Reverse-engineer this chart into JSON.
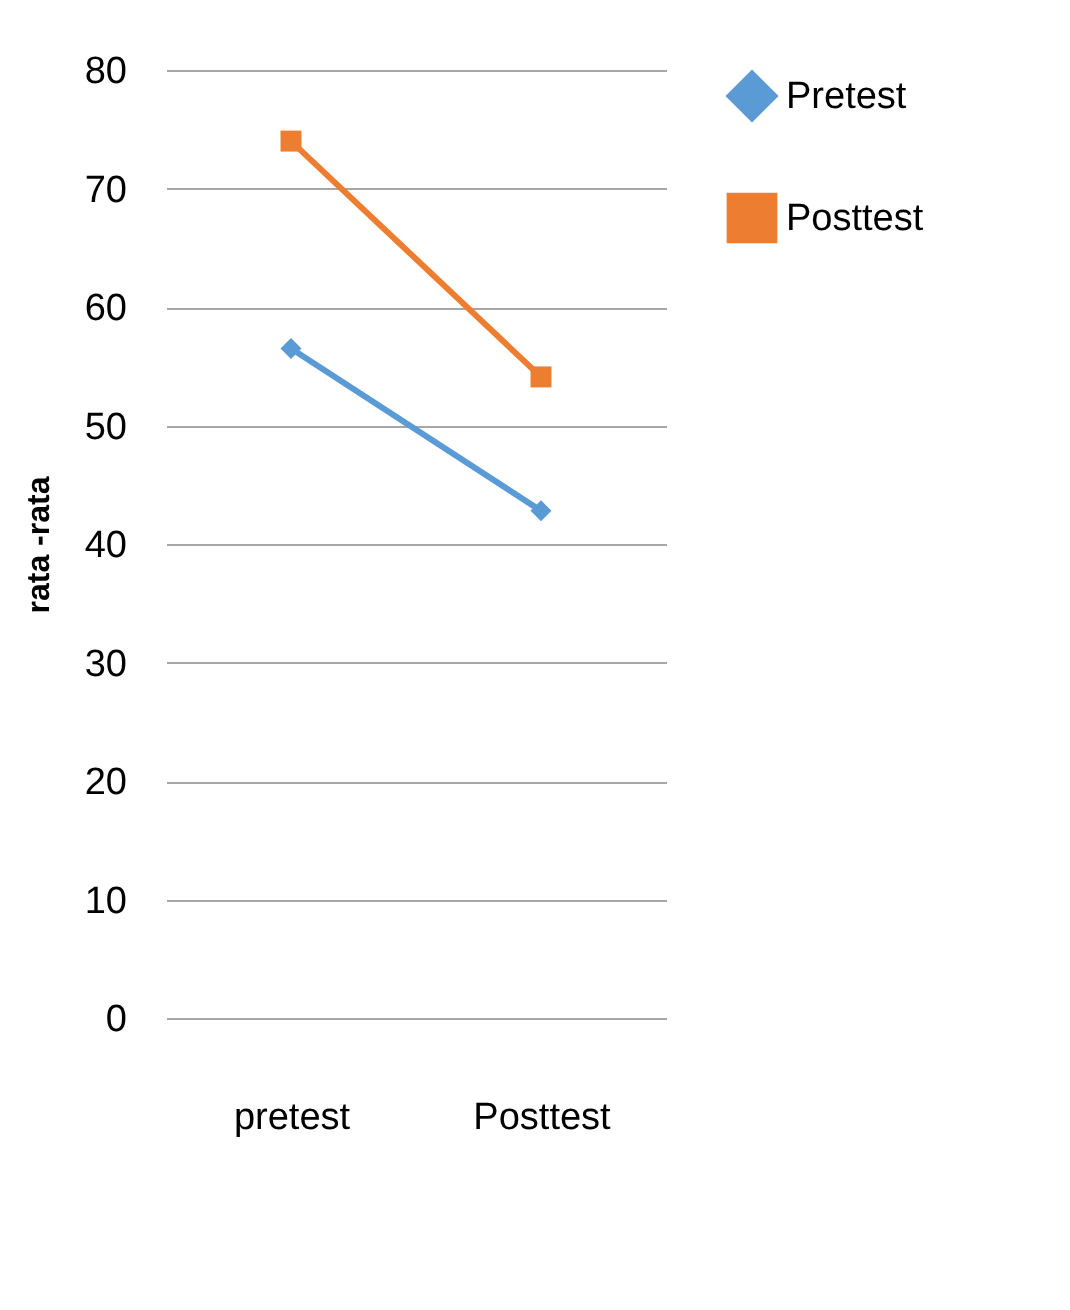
{
  "chart_data": {
    "type": "line",
    "ylabel": "rata -rata",
    "categories": [
      "pretest",
      "Posttest"
    ],
    "series": [
      {
        "name": "Pretest",
        "color": "#5b9bd5",
        "marker": "diamond",
        "values": [
          56.5,
          42.8
        ]
      },
      {
        "name": "Posttest",
        "color": "#ed7d31",
        "marker": "square",
        "values": [
          74.0,
          54.1
        ]
      }
    ],
    "ylim": [
      0,
      80
    ],
    "yticks": [
      0,
      10,
      20,
      30,
      40,
      50,
      60,
      70,
      80
    ],
    "grid": "y",
    "legend": "right"
  }
}
